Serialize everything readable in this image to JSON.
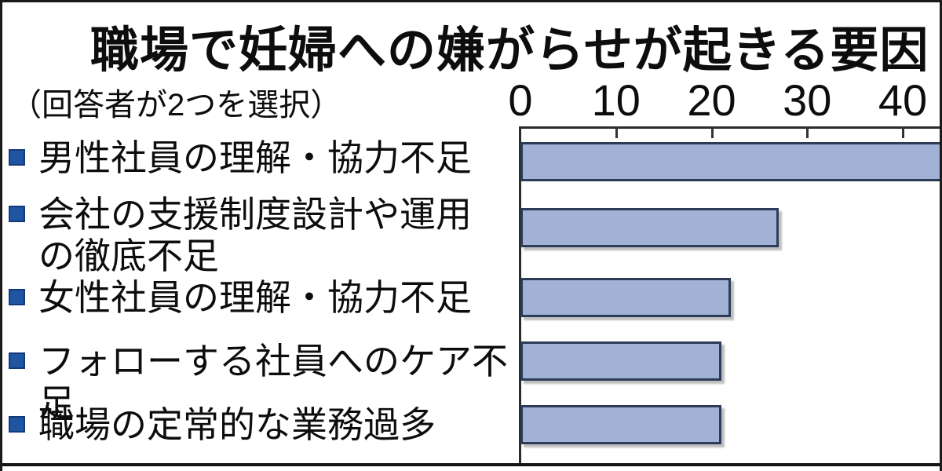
{
  "title": "職場で妊婦への嫌がらせが起きる要因",
  "subtitle": "（回答者が2つを選択）",
  "chart_data": {
    "type": "bar",
    "orientation": "horizontal",
    "title": "職場で妊婦への嫌がらせが起きる要因",
    "subtitle": "（回答者が2つを選択）",
    "categories": [
      "男性社員の理解・協力不足",
      "会社の支援制度設計や運用\nの徹底不足",
      "女性社員の理解・協力不足",
      "フォローする社員へのケア不足",
      "職場の定常的な業務過多"
    ],
    "values": [
      45,
      27,
      22,
      21,
      21
    ],
    "first_bar_truncated_at_right_edge": true,
    "axis_position": "top",
    "xticks": [
      0,
      10,
      20,
      30,
      40
    ],
    "xlim": [
      0,
      44
    ],
    "grid": false,
    "legend": false,
    "colors": {
      "bar_fill": "#a2b2d6",
      "bar_border": "#2c3c58",
      "bullet_fill": "#1f55a3",
      "bullet_border": "#153a78",
      "text": "#0d0d0d",
      "axis_line": "#2b2b2b"
    }
  }
}
